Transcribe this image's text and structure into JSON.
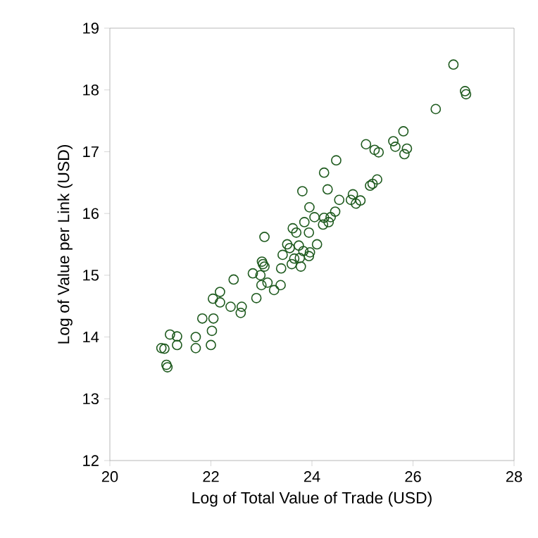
{
  "chart_data": {
    "type": "scatter",
    "xlabel": "Log of Total Value of Trade (USD)",
    "ylabel": "Log of Value per Link (USD)",
    "xlim": [
      20,
      28
    ],
    "xticks": [
      20,
      22,
      24,
      26,
      28
    ],
    "ylim": [
      12,
      19
    ],
    "yticks": [
      12,
      13,
      14,
      15,
      16,
      17,
      18,
      19
    ],
    "marker": "circle",
    "series": [
      {
        "color": "#1e5a1e",
        "x": [
          26.8,
          27.03,
          27.05,
          26.45,
          25.81,
          25.61,
          25.65,
          25.88,
          25.83,
          25.07,
          25.24,
          25.32,
          24.48,
          24.24,
          24.31,
          23.81,
          25.29,
          25.2,
          25.15,
          24.81,
          24.77,
          24.87,
          24.96,
          24.54,
          23.95,
          24.46,
          24.37,
          24.33,
          24.22,
          24.24,
          24.05,
          23.85,
          23.62,
          23.69,
          23.94,
          24.1,
          23.06,
          23.51,
          23.56,
          23.42,
          23.74,
          23.83,
          23.94,
          23.65,
          23.76,
          23.96,
          23.6,
          23.78,
          23.39,
          23.01,
          23.06,
          23.03,
          22.83,
          22.98,
          23.0,
          23.12,
          23.25,
          23.38,
          22.9,
          22.45,
          22.18,
          22.04,
          22.18,
          22.39,
          22.61,
          22.59,
          21.83,
          22.05,
          22.02,
          22.0,
          21.7,
          21.7,
          21.33,
          21.33,
          21.19,
          21.02,
          21.08,
          21.12,
          21.14
        ],
        "values": [
          18.41,
          17.98,
          17.93,
          17.69,
          17.33,
          17.17,
          17.08,
          17.05,
          16.96,
          17.12,
          17.03,
          16.99,
          16.86,
          16.66,
          16.39,
          16.36,
          16.55,
          16.48,
          16.45,
          16.31,
          16.22,
          16.16,
          16.21,
          16.22,
          16.1,
          16.03,
          15.94,
          15.86,
          15.82,
          15.93,
          15.94,
          15.86,
          15.76,
          15.69,
          15.69,
          15.5,
          15.62,
          15.5,
          15.44,
          15.33,
          15.48,
          15.39,
          15.31,
          15.27,
          15.28,
          15.37,
          15.18,
          15.14,
          15.11,
          15.22,
          15.14,
          15.18,
          15.03,
          15.0,
          14.84,
          14.88,
          14.76,
          14.84,
          14.63,
          14.93,
          14.73,
          14.62,
          14.56,
          14.49,
          14.49,
          14.39,
          14.3,
          14.3,
          14.1,
          13.87,
          14.0,
          13.82,
          14.01,
          13.87,
          14.04,
          13.82,
          13.81,
          13.55,
          13.51
        ]
      }
    ]
  }
}
